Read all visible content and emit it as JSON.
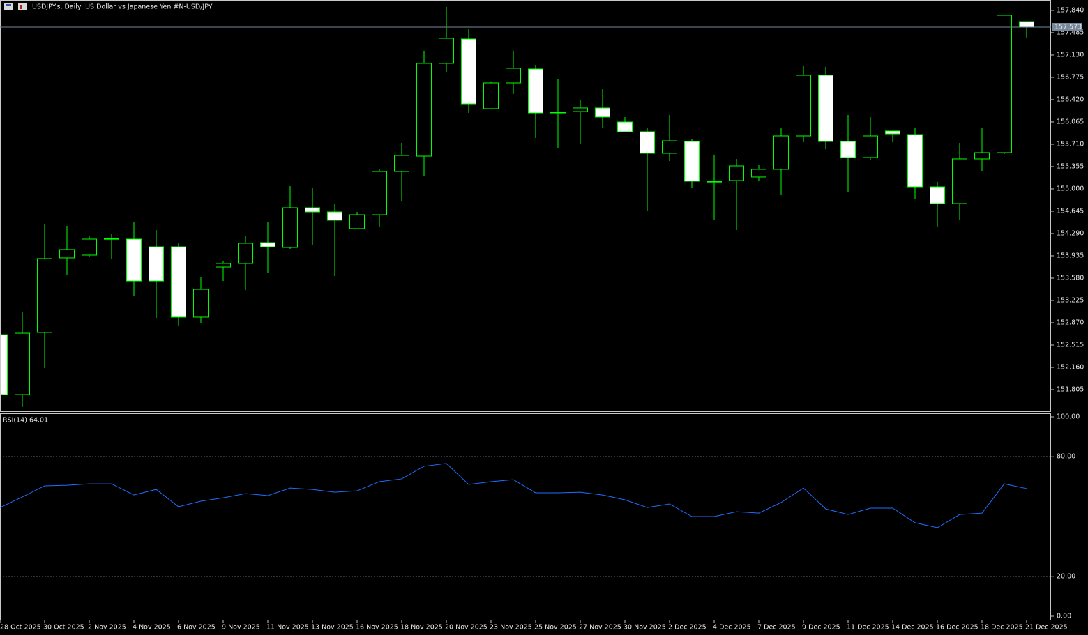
{
  "chart_data": [
    {
      "type": "candlestick",
      "title": "USDJPY.s, Daily:  US Dollar vs  Japanese Yen #N-USD/JPY",
      "categories": [
        "28 Oct 2025",
        null,
        "30 Oct 2025",
        null,
        "2 Nov 2025",
        null,
        "4 Nov 2025",
        null,
        "6 Nov 2025",
        null,
        "9 Nov 2025",
        null,
        "11 Nov 2025",
        null,
        "13 Nov 2025",
        null,
        "16 Nov 2025",
        null,
        "18 Nov 2025",
        null,
        "20 Nov 2025",
        null,
        "23 Nov 2025",
        null,
        "25 Nov 2025",
        null,
        "27 Nov 2025",
        null,
        "30 Nov 2025",
        null,
        "2 Dec 2025",
        null,
        "4 Dec 2025",
        null,
        "7 Dec 2025",
        null,
        "9 Dec 2025",
        null,
        "11 Dec 2025",
        null,
        "14 Dec 2025",
        null,
        "16 Dec 2025",
        null,
        "18 Dec 2025",
        null,
        "21 Dec 2025"
      ],
      "open": [
        152.68,
        151.727,
        152.715,
        153.902,
        153.946,
        154.2,
        154.201,
        154.079,
        154.079,
        152.959,
        153.757,
        153.813,
        154.146,
        154.068,
        154.7,
        154.634,
        154.368,
        154.589,
        155.277,
        155.521,
        156.997,
        157.385,
        156.276,
        156.686,
        156.908,
        156.22,
        156.231,
        156.287,
        156.065,
        155.91,
        155.566,
        155.754,
        155.12,
        155.133,
        155.189,
        155.311,
        155.843,
        156.808,
        155.754,
        155.499,
        155.921,
        155.865,
        155.033,
        154.767,
        155.477,
        155.577,
        157.662
      ],
      "high": [
        152.68,
        153.047,
        154.445,
        154.412,
        154.257,
        154.29,
        154.478,
        154.345,
        154.135,
        153.591,
        153.857,
        154.246,
        154.478,
        155.044,
        155.011,
        154.756,
        154.634,
        155.311,
        155.732,
        157.197,
        157.895,
        157.54,
        156.708,
        157.197,
        156.975,
        156.742,
        156.409,
        156.586,
        156.143,
        155.976,
        156.176,
        155.788,
        155.544,
        155.477,
        155.377,
        155.976,
        156.952,
        156.941,
        156.176,
        156.143,
        155.921,
        155.976,
        155.111,
        155.732,
        155.976,
        157.762,
        157.662
      ],
      "low": [
        151.72,
        151.527,
        152.149,
        153.635,
        153.924,
        153.88,
        153.302,
        152.947,
        152.826,
        152.859,
        153.535,
        153.391,
        153.658,
        154.046,
        154.113,
        153.613,
        154.368,
        154.401,
        154.8,
        155.2,
        156.864,
        156.209,
        156.276,
        156.509,
        155.81,
        155.654,
        155.71,
        155.965,
        155.91,
        154.656,
        155.444,
        155.022,
        154.512,
        154.345,
        155.133,
        154.9,
        155.743,
        155.632,
        154.944,
        155.455,
        155.743,
        154.833,
        154.39,
        154.512,
        155.288,
        155.555,
        157.396
      ],
      "close": [
        151.727,
        152.703,
        153.891,
        154.035,
        154.201,
        154.21,
        153.535,
        153.535,
        152.959,
        153.402,
        153.813,
        154.135,
        154.079,
        154.7,
        154.634,
        154.501,
        154.589,
        155.277,
        155.532,
        156.997,
        157.396,
        156.353,
        156.686,
        156.919,
        156.209,
        156.22,
        156.287,
        156.143,
        155.91,
        155.566,
        155.765,
        155.122,
        155.12,
        155.366,
        155.311,
        155.843,
        156.808,
        155.754,
        155.499,
        155.843,
        155.876,
        155.033,
        154.767,
        155.477,
        155.577,
        157.762,
        157.573
      ],
      "up_color": "#00ff00",
      "down_color": "#00ff00",
      "up_fill": "#000000",
      "down_fill": "#ffffff",
      "price_line": {
        "value": 157.573,
        "label": "157.573"
      },
      "ylim": [
        151.461,
        158.006
      ],
      "yticks": [
        {
          "value": 157.84,
          "label": "157.840"
        },
        157.485,
        {
          "value": 157.13,
          "label": "157.130"
        },
        156.775,
        {
          "value": 156.42,
          "label": "156.420"
        },
        156.065,
        {
          "value": 155.71,
          "label": "155.710"
        },
        155.355,
        {
          "value": 155,
          "label": "155.000"
        },
        154.645,
        {
          "value": 154.29,
          "label": "154.290"
        },
        153.935,
        {
          "value": 153.58,
          "label": "153.580"
        },
        153.225,
        {
          "value": 152.87,
          "label": "152.870"
        },
        152.515,
        {
          "value": 152.16,
          "label": "152.160"
        },
        151.805
      ]
    },
    {
      "type": "line",
      "title": "RSI(14) 64.01",
      "color": "#1f6fff",
      "values": [
        54.5,
        59.8,
        65.4,
        65.7,
        66.4,
        66.4,
        60.8,
        63.6,
        54.9,
        57.7,
        59.4,
        61.5,
        60.5,
        64.3,
        63.6,
        62.2,
        62.9,
        67.5,
        68.9,
        75.2,
        76.6,
        66.1,
        67.5,
        68.5,
        61.9,
        61.9,
        62.2,
        60.8,
        58.4,
        54.5,
        56.3,
        50.0,
        50.0,
        52.4,
        51.7,
        57.0,
        64.3,
        53.8,
        51.0,
        54.2,
        54.2,
        46.9,
        44.4,
        51.0,
        51.7,
        66.4,
        64.01
      ],
      "ylim": [
        0,
        100
      ],
      "yticks": [
        {
          "value": 100,
          "label": "100.00"
        },
        {
          "value": 80,
          "label": "80.00"
        },
        {
          "value": 20,
          "label": "20.00"
        },
        {
          "value": 0,
          "label": "0.00"
        }
      ],
      "level_lines": [
        80,
        20
      ]
    }
  ]
}
